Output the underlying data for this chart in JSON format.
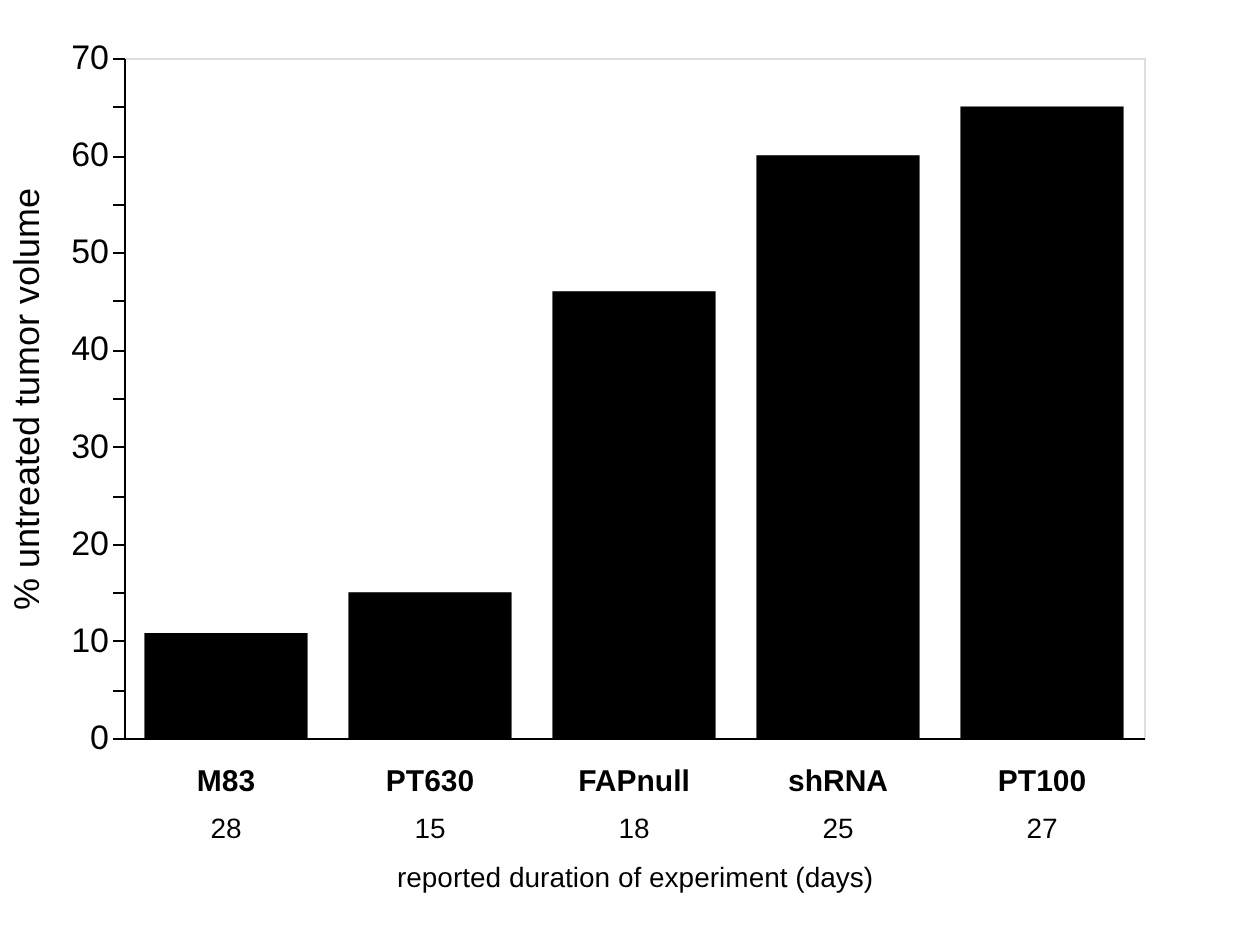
{
  "chart_data": {
    "type": "bar",
    "categories": [
      "M83",
      "PT630",
      "FAPnull",
      "shRNA",
      "PT100"
    ],
    "values": [
      10.8,
      15,
      46,
      60,
      65
    ],
    "color": "#000000",
    "ylabel": "% untreated tumor volume",
    "xlabel": "reported duration of experiment (days)",
    "ylim": [
      0,
      70
    ],
    "yticks": [
      0,
      {
        "value": 5,
        "label": null
      },
      10,
      {
        "value": 15,
        "label": null
      },
      20,
      {
        "value": 25,
        "label": null
      },
      30,
      {
        "value": 35,
        "label": null
      },
      40,
      {
        "value": 45,
        "label": null
      },
      50,
      {
        "value": 55,
        "label": null
      },
      60,
      {
        "value": 65,
        "label": null
      },
      70
    ],
    "annotations": [
      "28",
      "15",
      "18",
      "25",
      "27"
    ],
    "grid": false
  }
}
